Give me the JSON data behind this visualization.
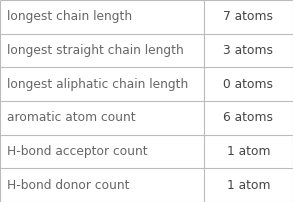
{
  "rows": [
    [
      "longest chain length",
      "7 atoms"
    ],
    [
      "longest straight chain length",
      "3 atoms"
    ],
    [
      "longest aliphatic chain length",
      "0 atoms"
    ],
    [
      "aromatic atom count",
      "6 atoms"
    ],
    [
      "H-bond acceptor count",
      "1 atom"
    ],
    [
      "H-bond donor count",
      "1 atom"
    ]
  ],
  "col_split": 0.695,
  "background_color": "#ffffff",
  "border_color": "#bbbbbb",
  "text_color_left": "#666666",
  "text_color_right": "#444444",
  "font_size": 8.8
}
